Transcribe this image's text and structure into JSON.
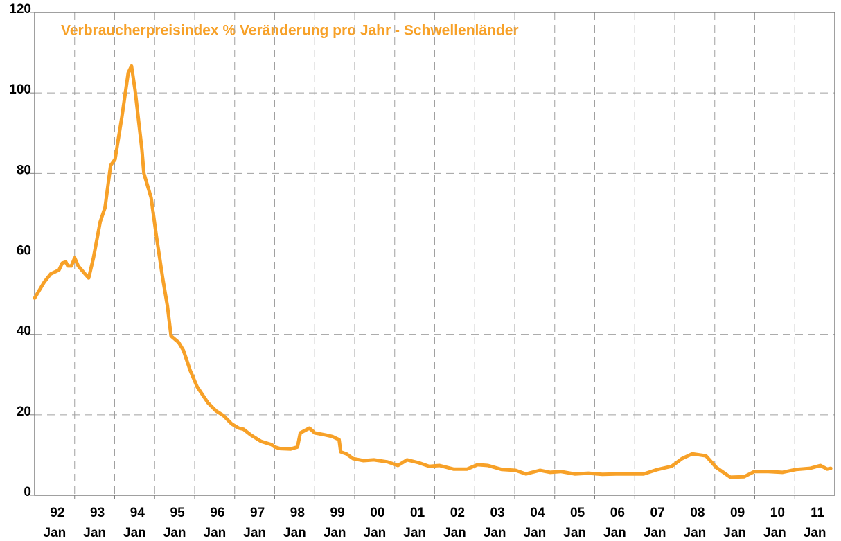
{
  "chart_data": {
    "type": "line",
    "title": "Verbraucherpreisindex % Veränderung pro  Jahr - Schwellenländer",
    "color": "#f7a128",
    "x": [
      1992.0,
      1992.24,
      1992.4,
      1992.61,
      1992.69,
      1992.78,
      1992.83,
      1992.92,
      1993.0,
      1993.09,
      1993.26,
      1993.35,
      1993.47,
      1993.64,
      1993.76,
      1993.9,
      1994.01,
      1994.18,
      1994.34,
      1994.42,
      1994.51,
      1994.68,
      1994.73,
      1994.91,
      1995.04,
      1995.2,
      1995.32,
      1995.41,
      1995.6,
      1995.72,
      1995.89,
      1996.06,
      1996.33,
      1996.53,
      1996.72,
      1996.93,
      1997.1,
      1997.22,
      1997.4,
      1997.66,
      1997.92,
      1998.0,
      1998.14,
      1998.4,
      1998.57,
      1998.64,
      1998.87,
      1999.0,
      1999.27,
      1999.44,
      1999.61,
      1999.65,
      1999.79,
      1999.96,
      2000.22,
      2000.48,
      2000.82,
      2001.08,
      2001.31,
      2001.6,
      2001.86,
      2002.12,
      2002.47,
      2002.81,
      2003.07,
      2003.33,
      2003.68,
      2004.02,
      2004.28,
      2004.63,
      2004.89,
      2005.15,
      2005.5,
      2005.84,
      2006.19,
      2006.53,
      2006.88,
      2007.22,
      2007.57,
      2007.92,
      2008.18,
      2008.44,
      2008.78,
      2009.04,
      2009.39,
      2009.73,
      2009.99,
      2010.34,
      2010.69,
      2011.03,
      2011.38,
      2011.64,
      2011.81,
      2011.9
    ],
    "values": [
      49,
      53,
      55,
      56,
      57.7,
      58,
      57,
      57,
      59,
      57,
      55,
      54,
      59,
      68,
      71.5,
      82,
      83.5,
      94,
      105,
      106.7,
      100.7,
      86,
      80,
      74,
      64.6,
      54,
      47,
      39.6,
      38,
      36,
      31,
      27,
      23,
      21,
      19.8,
      17.7,
      16.7,
      16.4,
      15,
      13.4,
      12.6,
      12,
      11.6,
      11.5,
      12,
      15.5,
      16.7,
      15.5,
      15,
      14.6,
      13.8,
      10.8,
      10.3,
      9.1,
      8.6,
      8.8,
      8.3,
      7.4,
      8.8,
      8.1,
      7.2,
      7.4,
      6.5,
      6.5,
      7.6,
      7.4,
      6.4,
      6.2,
      5.3,
      6.2,
      5.7,
      5.9,
      5.3,
      5.5,
      5.2,
      5.3,
      5.3,
      5.3,
      6.4,
      7.2,
      9.1,
      10.3,
      9.8,
      6.9,
      4.5,
      4.6,
      5.9,
      5.9,
      5.7,
      6.4,
      6.7,
      7.4,
      6.5,
      6.7
    ],
    "xlim": [
      1992,
      2012
    ],
    "ylim": [
      0,
      120
    ],
    "yticks": [
      0,
      20,
      40,
      60,
      80,
      100,
      120
    ],
    "xgrid": [
      1993,
      1994,
      1995,
      1996,
      1997,
      1998,
      1999,
      2000,
      2001,
      2002,
      2003,
      2004,
      2005,
      2006,
      2007,
      2008,
      2009,
      2010,
      2011
    ],
    "xticks": [
      {
        "value": 1992.5,
        "label": [
          "92",
          "Jan"
        ]
      },
      {
        "value": 1993.5,
        "label": [
          "93",
          "Jan"
        ]
      },
      {
        "value": 1994.5,
        "label": [
          "94",
          "Jan"
        ]
      },
      {
        "value": 1995.5,
        "label": [
          "95",
          "Jan"
        ]
      },
      {
        "value": 1996.5,
        "label": [
          "96",
          "Jan"
        ]
      },
      {
        "value": 1997.5,
        "label": [
          "97",
          "Jan"
        ]
      },
      {
        "value": 1998.5,
        "label": [
          "98",
          "Jan"
        ]
      },
      {
        "value": 1999.5,
        "label": [
          "99",
          "Jan"
        ]
      },
      {
        "value": 2000.5,
        "label": [
          "00",
          "Jan"
        ]
      },
      {
        "value": 2001.5,
        "label": [
          "01",
          "Jan"
        ]
      },
      {
        "value": 2002.5,
        "label": [
          "02",
          "Jan"
        ]
      },
      {
        "value": 2003.5,
        "label": [
          "03",
          "Jan"
        ]
      },
      {
        "value": 2004.5,
        "label": [
          "04",
          "Jan"
        ]
      },
      {
        "value": 2005.5,
        "label": [
          "05",
          "Jan"
        ]
      },
      {
        "value": 2006.5,
        "label": [
          "06",
          "Jan"
        ]
      },
      {
        "value": 2007.5,
        "label": [
          "07",
          "Jan"
        ]
      },
      {
        "value": 2008.5,
        "label": [
          "08",
          "Jan"
        ]
      },
      {
        "value": 2009.5,
        "label": [
          "09",
          "Jan"
        ]
      },
      {
        "value": 2010.5,
        "label": [
          "10",
          "Jan"
        ]
      },
      {
        "value": 2011.5,
        "label": [
          "11",
          "Jan"
        ]
      }
    ],
    "grid": true
  }
}
